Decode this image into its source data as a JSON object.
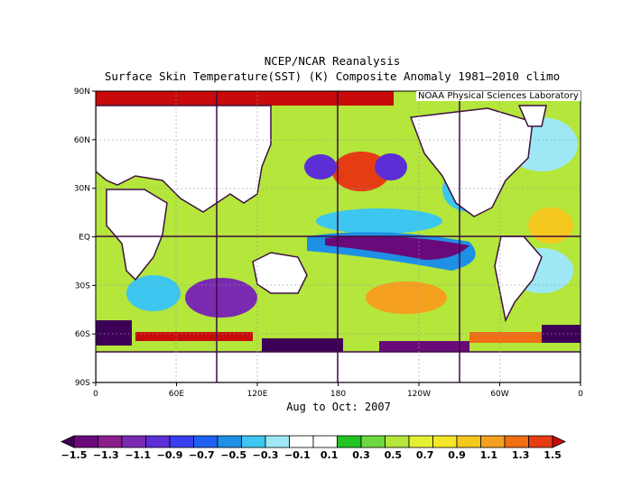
{
  "title_line1": "NCEP/NCAR Reanalysis",
  "title_line2": "Surface Skin Temperature(SST) (K) Composite Anomaly 1981–2010 climo",
  "credit": "NOAA Physical Sciences Laboratory",
  "period": "Aug to Oct: 2007",
  "map": {
    "lat_ticks": [
      "90N",
      "60N",
      "30N",
      "EQ",
      "30S",
      "60S",
      "90S"
    ],
    "lon_ticks": [
      "0",
      "60E",
      "120E",
      "180",
      "120W",
      "60W",
      "0"
    ],
    "regions": [
      {
        "name": "arctic-warm-anomaly",
        "value": 1.5
      },
      {
        "name": "north-pacific-warm-anomaly",
        "value": 1.5
      },
      {
        "name": "north-pacific-cool-anomaly",
        "value": -0.9
      },
      {
        "name": "equatorial-pacific-cold-tongue",
        "value": -1.5
      },
      {
        "name": "southern-ocean-cold-anomaly",
        "value": -1.5
      },
      {
        "name": "southern-ocean-warm-anomaly",
        "value": 1.5
      },
      {
        "name": "south-indian-cool-anomaly",
        "value": -0.7
      },
      {
        "name": "tropical-atlantic-warm-anomaly",
        "value": 0.7
      }
    ]
  },
  "colorbar": {
    "labels": [
      "-1.5",
      "-1.3",
      "-1.1",
      "-0.9",
      "-0.7",
      "-0.5",
      "-0.3",
      "-0.1",
      "0.1",
      "0.3",
      "0.5",
      "0.7",
      "0.9",
      "1.1",
      "1.3",
      "1.5"
    ],
    "colors": [
      "#3d0057",
      "#6a0a7a",
      "#8c1d8c",
      "#7a2ab0",
      "#5b2ed6",
      "#3a3ef0",
      "#2060f0",
      "#1e90e6",
      "#3cc6f0",
      "#9ee8f5",
      "#ffffff",
      "#ffffff",
      "#22c322",
      "#6ed840",
      "#b4e63c",
      "#e6f032",
      "#f5e628",
      "#f5c81e",
      "#f5a01e",
      "#f06e14",
      "#e63c14",
      "#c80a0a"
    ]
  }
}
